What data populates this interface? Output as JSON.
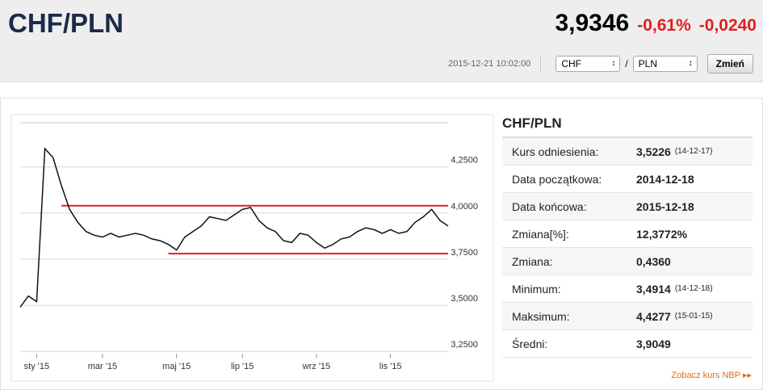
{
  "header": {
    "title": "CHF/PLN",
    "price": "3,9346",
    "change_pct": "-0,61%",
    "change": "-0,0240",
    "timestamp": "2015-12-21 10:02:00",
    "from_currency": "CHF",
    "separator": "/",
    "to_currency": "PLN",
    "button": "Zmień"
  },
  "chart_data": {
    "type": "line",
    "categories": [
      null,
      null,
      "sty '15",
      null,
      null,
      null,
      null,
      null,
      null,
      null,
      "mar '15",
      null,
      null,
      null,
      null,
      null,
      null,
      null,
      null,
      "maj '15",
      null,
      null,
      null,
      null,
      null,
      null,
      null,
      "lip '15",
      null,
      null,
      null,
      null,
      null,
      null,
      null,
      null,
      "wrz '15",
      null,
      null,
      null,
      null,
      null,
      null,
      null,
      null,
      "lis '15",
      null,
      null,
      null,
      null,
      null,
      null,
      null
    ],
    "values": [
      3.49,
      3.55,
      3.52,
      4.35,
      4.3,
      4.15,
      4.02,
      3.95,
      3.9,
      3.88,
      3.87,
      3.89,
      3.87,
      3.88,
      3.89,
      3.88,
      3.86,
      3.85,
      3.83,
      3.8,
      3.87,
      3.9,
      3.93,
      3.98,
      3.97,
      3.96,
      3.99,
      4.02,
      4.03,
      3.96,
      3.92,
      3.9,
      3.85,
      3.84,
      3.89,
      3.88,
      3.84,
      3.81,
      3.83,
      3.86,
      3.87,
      3.9,
      3.92,
      3.91,
      3.89,
      3.91,
      3.89,
      3.9,
      3.95,
      3.98,
      4.02,
      3.96,
      3.93
    ],
    "color": "#111111",
    "ylim": [
      3.22,
      4.49
    ],
    "yticks": [
      {
        "value": 3.25,
        "label": "3,2500"
      },
      {
        "value": 3.5,
        "label": "3,5000"
      },
      {
        "value": 3.75,
        "label": "3,7500"
      },
      {
        "value": 4.0,
        "label": "4,0000"
      },
      {
        "value": 4.25,
        "label": "4,2500"
      }
    ],
    "grid": true,
    "reference_lines": [
      {
        "value": 4.04,
        "start": 5,
        "color": "#e02020"
      },
      {
        "value": 3.78,
        "start": 18,
        "color": "#e02020"
      }
    ]
  },
  "stats": {
    "title": "CHF/PLN",
    "rows": [
      {
        "label": "Kurs odniesienia:",
        "value": "3,5226",
        "note": "(14-12-17)"
      },
      {
        "label": "Data początkowa:",
        "value": "2014-12-18"
      },
      {
        "label": "Data końcowa:",
        "value": "2015-12-18"
      },
      {
        "label": "Zmiana[%]:",
        "value": "12,3772%"
      },
      {
        "label": "Zmiana:",
        "value": "0,4360"
      },
      {
        "label": "Minimum:",
        "value": "3,4914",
        "note": "(14-12-18)"
      },
      {
        "label": "Maksimum:",
        "value": "4,4277",
        "note": "(15-01-15)"
      },
      {
        "label": "Średni:",
        "value": "3,9049"
      }
    ]
  },
  "link": "Zobacz kurs NBP"
}
